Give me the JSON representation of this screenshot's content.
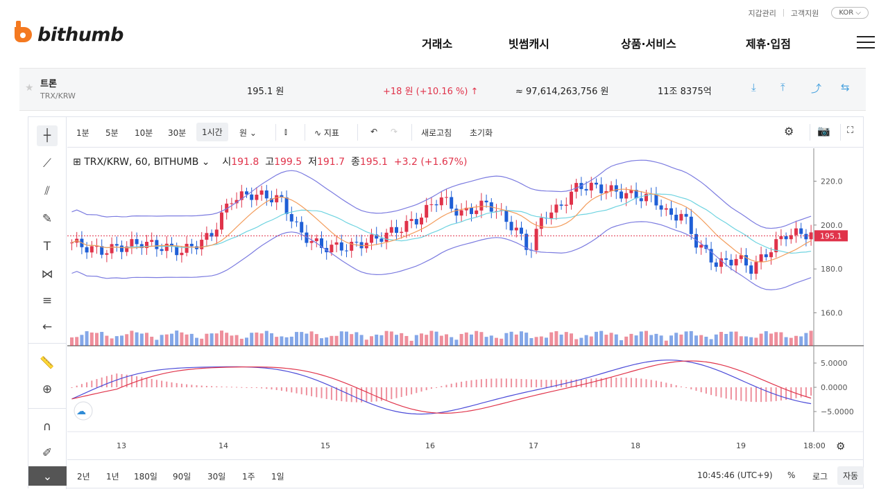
{
  "header": {
    "util_links": [
      "지갑관리",
      "고객지원"
    ],
    "language": "KOR ⌵",
    "logo_text": "bithumb",
    "nav": [
      "거래소",
      "빗썸캐시",
      "상품·서비스",
      "제휴·입점"
    ]
  },
  "ticker": {
    "name": "트론",
    "pair": "TRX/KRW",
    "price": "195.1 원",
    "change": "+18 원 (+10.16 %) ↑",
    "volume_krw": "≈ 97,614,263,756 원",
    "market_cap": "11조 8375억"
  },
  "toolbar": {
    "intervals": [
      "1분",
      "5분",
      "10분",
      "30분",
      "1시간",
      "원"
    ],
    "active_interval": "1시간",
    "indicators": "지표",
    "refresh": "새로고침",
    "reset": "초기화"
  },
  "legend": {
    "symbol": "TRX/KRW, 60, BITHUMB",
    "open_label": "시",
    "open": "191.8",
    "high_label": "고",
    "high": "199.5",
    "low_label": "저",
    "low": "191.7",
    "close_label": "종",
    "close": "195.1",
    "change": "+3.2 (+1.67%)"
  },
  "price_axis": [
    "220.0",
    "200.0",
    "180.0",
    "160.0"
  ],
  "last_price_tag": "195.1",
  "macd_axis": [
    "5.0000",
    "0.0000",
    "−5.0000"
  ],
  "time_axis": [
    "13",
    "14",
    "15",
    "16",
    "17",
    "18",
    "19",
    "18:00"
  ],
  "bottombar": {
    "ranges": [
      "2년",
      "1년",
      "180일",
      "90일",
      "30일",
      "1주",
      "1일"
    ],
    "clock": "10:45:46 (UTC+9)",
    "percent": "%",
    "log": "로그",
    "auto": "자동"
  },
  "colors": {
    "up": "#e0334a",
    "down": "#1f5fd6",
    "bb": "#7b7be0",
    "ma_fast": "#f39c5b",
    "ma_slow": "#6dd3e0"
  }
}
